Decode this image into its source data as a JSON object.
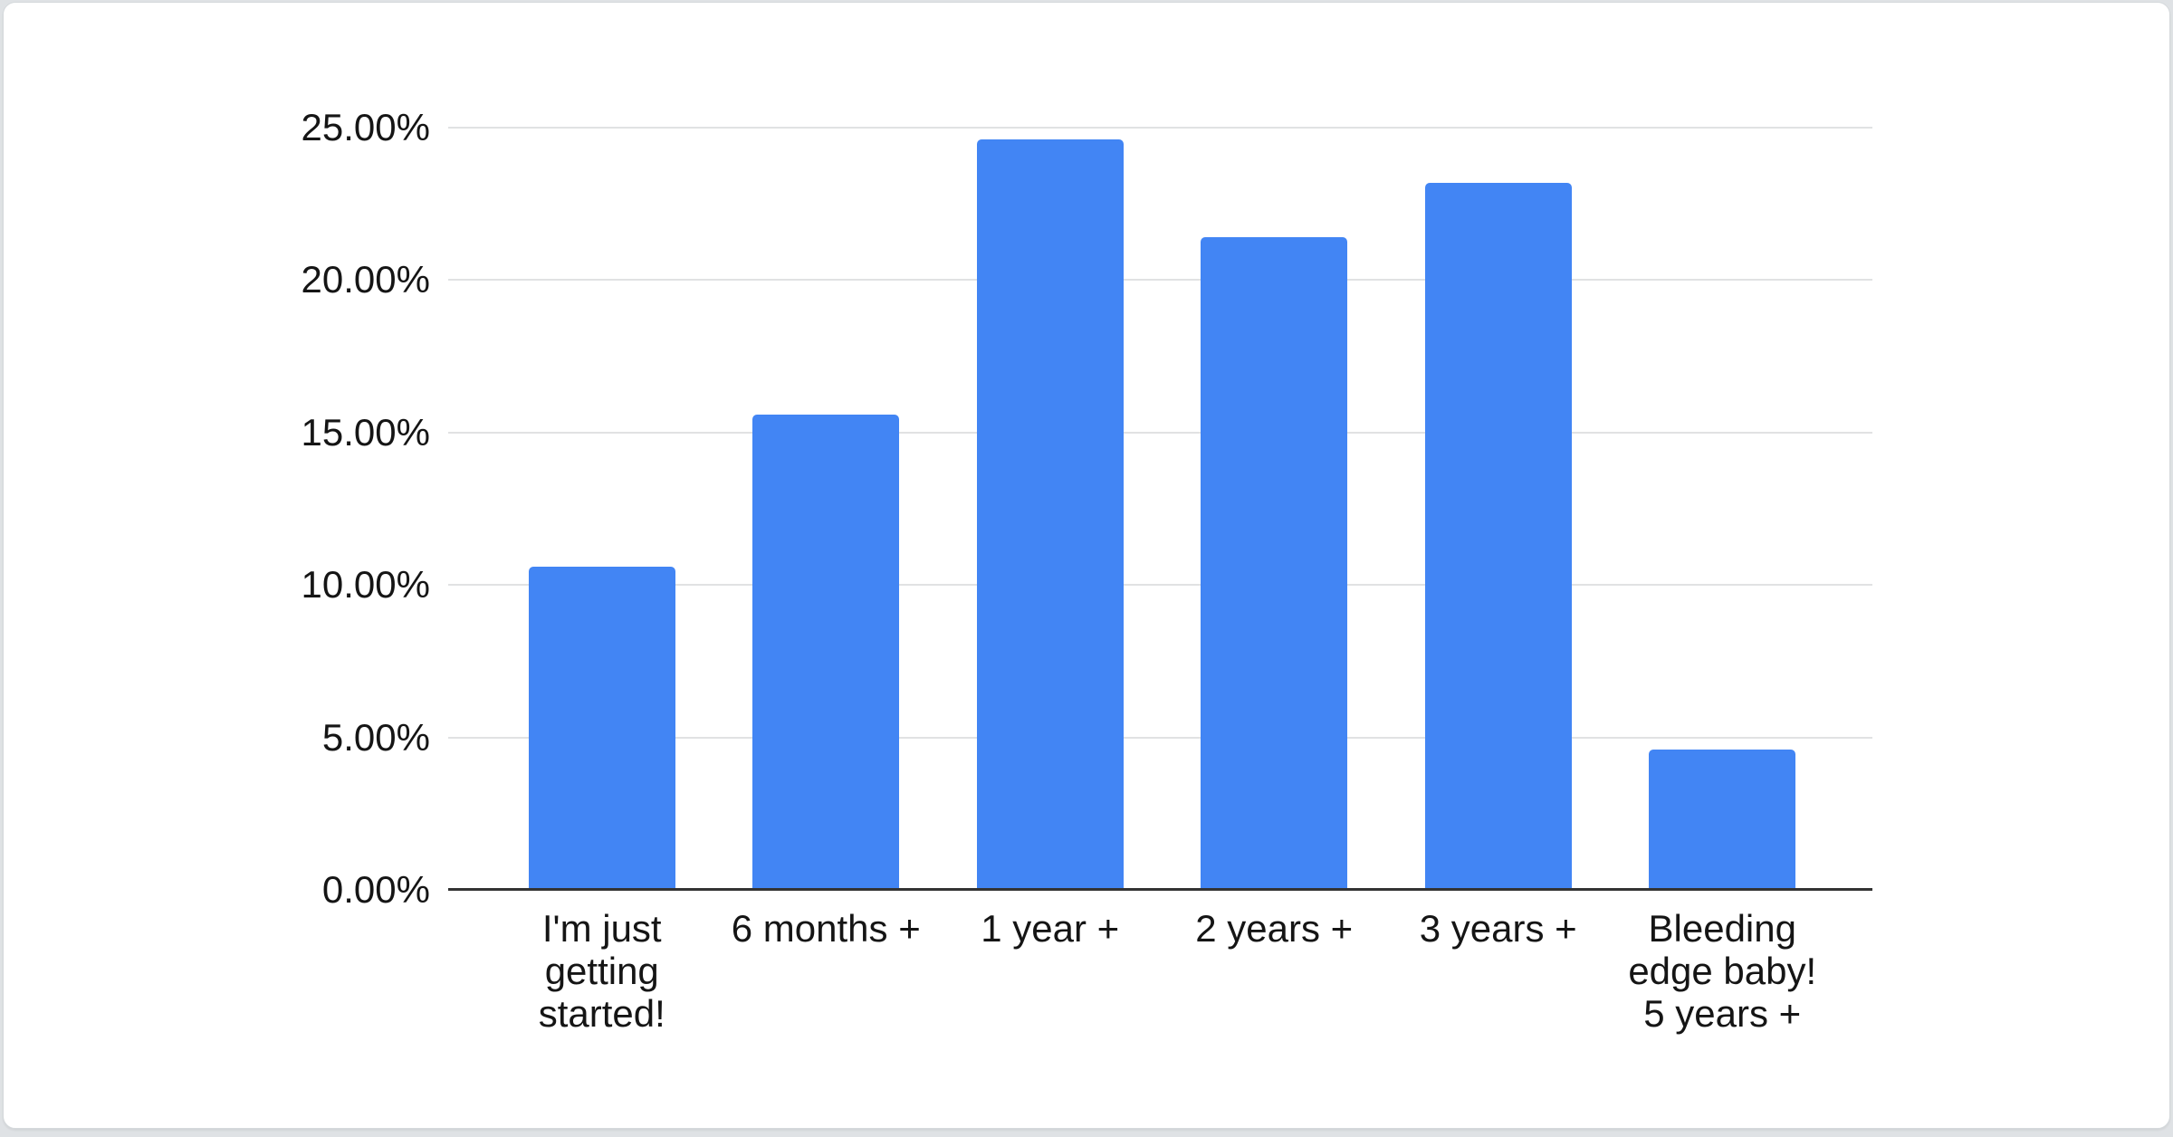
{
  "chart_data": {
    "type": "bar",
    "title": "",
    "xlabel": "",
    "ylabel": "",
    "categories": [
      "I'm just getting started!",
      "6 months +",
      "1 year +",
      "2 years +",
      "3 years +",
      "Bleeding edge baby! 5 years +"
    ],
    "values": [
      10.6,
      15.6,
      24.6,
      21.4,
      23.2,
      4.6
    ],
    "value_unit": "%",
    "ylim": [
      0,
      25
    ],
    "y_ticks": [
      "25.00%",
      "20.00%",
      "15.00%",
      "10.00%",
      "5.00%",
      "0.00%"
    ],
    "grid": "horizontal gridlines on, light gray",
    "legend_position": "none",
    "bar_color": "#4285f4"
  },
  "colors": {
    "bar": "#4285f4",
    "gridline": "#e1e2e3",
    "baseline": "#333333",
    "label_text": "#151515",
    "card_background": "#ffffff",
    "card_border": "#d5d9dc",
    "page_background": "#dfe2e5"
  }
}
